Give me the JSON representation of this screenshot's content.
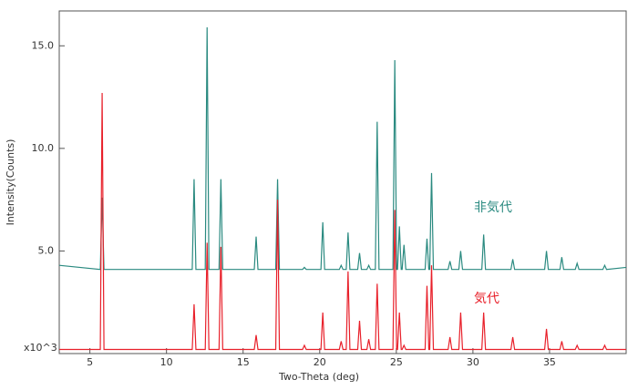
{
  "chart_data": {
    "type": "line",
    "x_label": "Two-Theta (deg)",
    "y_label": "Intensity(Counts)",
    "y_scale_label": "x10^3",
    "x": [
      3,
      5.68,
      5.8,
      5.92,
      11.68,
      11.8,
      11.92,
      12.53,
      12.65,
      12.77,
      13.43,
      13.55,
      13.67,
      15.73,
      15.85,
      15.97,
      17.13,
      17.25,
      17.37,
      18.88,
      19.0,
      19.12,
      20.08,
      20.2,
      20.32,
      21.28,
      21.4,
      21.52,
      21.73,
      21.85,
      21.97,
      22.48,
      22.6,
      22.72,
      23.08,
      23.2,
      23.32,
      23.63,
      23.75,
      23.87,
      24.78,
      24.9,
      25.02,
      25.08,
      25.2,
      25.32,
      25.38,
      25.5,
      25.62,
      26.88,
      27.0,
      27.12,
      27.18,
      27.3,
      27.42,
      28.38,
      28.5,
      28.62,
      29.08,
      29.2,
      29.32,
      30.58,
      30.7,
      30.82,
      32.48,
      32.6,
      32.72,
      34.68,
      34.8,
      34.92,
      35.68,
      35.8,
      35.92,
      36.68,
      36.8,
      36.92,
      38.48,
      38.6,
      38.72,
      40
    ],
    "series": [
      {
        "name": "非気代",
        "color": "#2a8a80",
        "values": [
          4.3,
          4.1,
          7.6,
          4.1,
          4.1,
          8.5,
          4.1,
          4.1,
          15.9,
          4.1,
          4.1,
          8.5,
          4.1,
          4.1,
          5.7,
          4.1,
          4.1,
          8.5,
          4.1,
          4.1,
          4.2,
          4.1,
          4.1,
          6.4,
          4.1,
          4.1,
          4.3,
          4.1,
          4.1,
          5.9,
          4.1,
          4.1,
          4.9,
          4.1,
          4.1,
          4.3,
          4.1,
          4.1,
          11.3,
          4.1,
          4.1,
          14.3,
          4.1,
          4.1,
          6.2,
          4.1,
          4.1,
          5.3,
          4.1,
          4.1,
          5.6,
          4.1,
          4.1,
          8.8,
          4.1,
          4.1,
          4.5,
          4.1,
          4.1,
          5.0,
          4.1,
          4.1,
          5.8,
          4.1,
          4.1,
          4.6,
          4.1,
          4.1,
          5.0,
          4.1,
          4.1,
          4.7,
          4.1,
          4.1,
          4.4,
          4.1,
          4.1,
          4.3,
          4.1,
          4.2
        ]
      },
      {
        "name": "気代",
        "color": "#e8202a",
        "values": [
          0.2,
          0.2,
          12.7,
          0.2,
          0.2,
          2.4,
          0.2,
          0.2,
          5.4,
          0.2,
          0.2,
          5.2,
          0.2,
          0.2,
          0.9,
          0.2,
          0.2,
          7.5,
          0.2,
          0.2,
          0.4,
          0.2,
          0.2,
          2.0,
          0.2,
          0.2,
          0.6,
          0.2,
          0.2,
          4.0,
          0.2,
          0.2,
          1.6,
          0.2,
          0.2,
          0.7,
          0.2,
          0.2,
          3.4,
          0.2,
          0.2,
          7.0,
          0.2,
          0.2,
          2.0,
          0.2,
          0.2,
          0.4,
          0.2,
          0.2,
          3.3,
          0.2,
          0.2,
          4.3,
          0.2,
          0.2,
          0.8,
          0.2,
          0.2,
          2.0,
          0.2,
          0.2,
          2.0,
          0.2,
          0.2,
          0.8,
          0.2,
          0.2,
          1.2,
          0.2,
          0.2,
          0.6,
          0.2,
          0.2,
          0.4,
          0.2,
          0.2,
          0.4,
          0.2,
          0.2
        ]
      }
    ],
    "xlim": [
      3,
      40
    ],
    "ylim": [
      0,
      16.7
    ],
    "xticks": [
      5,
      10,
      15,
      20,
      25,
      30,
      35
    ],
    "yticks": [
      {
        "value": 5,
        "label": "5.0"
      },
      {
        "value": 10,
        "label": "10.0"
      },
      {
        "value": 15,
        "label": "15.0"
      }
    ]
  }
}
